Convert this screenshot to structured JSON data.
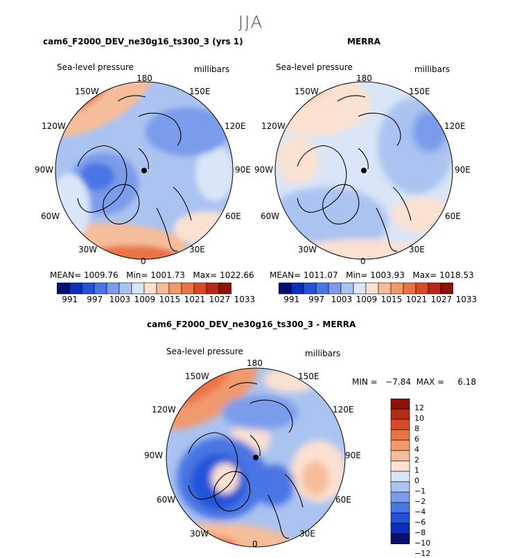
{
  "season": "JJA",
  "colors": {
    "palette": [
      "#08106e",
      "#0b2fb8",
      "#2252d8",
      "#4876e4",
      "#7a9ceb",
      "#abc3f0",
      "#d9e6f7",
      "#fbe1d1",
      "#f6bd9a",
      "#f09a6e",
      "#ea7346",
      "#d84a26",
      "#b52a14",
      "#8a1207"
    ],
    "land": "#000000"
  },
  "panels": [
    {
      "title": "cam6_F2000_DEV_ne30g16_ts300_3 (yrs 1)",
      "field": "Sea-level pressure",
      "units": "millibars",
      "stats": {
        "mean_label": "MEAN=",
        "mean": "1009.76",
        "min_label": "Min=",
        "min": "1001.73",
        "max_label": "Max=",
        "max": "1022.66"
      }
    },
    {
      "title": "MERRA",
      "field": "Sea-level pressure",
      "units": "millibars",
      "stats": {
        "mean_label": "MEAN=",
        "mean": "1011.07",
        "min_label": "Min=",
        "min": "1003.93",
        "max_label": "Max=",
        "max": "1018.53"
      }
    },
    {
      "title": "cam6_F2000_DEV_ne30g16_ts300_3 - MERRA",
      "field": "Sea-level pressure",
      "units": "millibars",
      "minmax": "MIN =   −7.84  MAX =     6.18"
    }
  ],
  "lon_labels": {
    "top": "180",
    "topleft": "150W",
    "topright": "150E",
    "uleft": "120W",
    "uright": "120E",
    "left": "90W",
    "right": "90E",
    "lleft": "60W",
    "lright": "60E",
    "bleft": "30W",
    "bright": "30E",
    "bottom": "0"
  },
  "colorbar_horizontal": {
    "labels": [
      "991",
      "997",
      "1003",
      "1009",
      "1015",
      "1021",
      "1027",
      "1033"
    ]
  },
  "colorbar_vertical": {
    "labels": [
      "12",
      "10",
      "8",
      "6",
      "4",
      "2",
      "1",
      "0",
      "−1",
      "−2",
      "−4",
      "−6",
      "−8",
      "−10",
      "−12"
    ]
  }
}
